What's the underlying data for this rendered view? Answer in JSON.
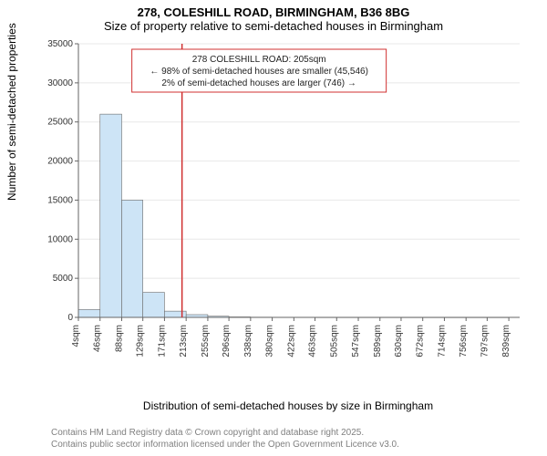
{
  "title_line1": "278, COLESHILL ROAD, BIRMINGHAM, B36 8BG",
  "title_line2": "Size of property relative to semi-detached houses in Birmingham",
  "ylabel": "Number of semi-detached properties",
  "xlabel": "Distribution of semi-detached houses by size in Birmingham",
  "footer_line1": "Contains HM Land Registry data © Crown copyright and database right 2025.",
  "footer_line2": "Contains public sector information licensed under the Open Government Licence v3.0.",
  "chart": {
    "type": "histogram",
    "ylim": [
      0,
      35000
    ],
    "yticks": [
      0,
      5000,
      10000,
      15000,
      20000,
      25000,
      30000,
      35000
    ],
    "xlim": [
      4,
      860
    ],
    "xticks": [
      4,
      46,
      88,
      129,
      171,
      213,
      255,
      296,
      338,
      380,
      422,
      463,
      505,
      547,
      589,
      630,
      672,
      714,
      756,
      797,
      839
    ],
    "xtick_suffix": "sqm",
    "bar_color": "#cde4f6",
    "bar_border": "#6c6c6c",
    "grid_color": "#e8e8e8",
    "axis_color": "#666666",
    "background": "#ffffff",
    "bars": [
      {
        "x0": 4,
        "x1": 46,
        "y": 1000
      },
      {
        "x0": 46,
        "x1": 88,
        "y": 26000
      },
      {
        "x0": 88,
        "x1": 129,
        "y": 15000
      },
      {
        "x0": 129,
        "x1": 171,
        "y": 3200
      },
      {
        "x0": 171,
        "x1": 213,
        "y": 800
      },
      {
        "x0": 213,
        "x1": 255,
        "y": 350
      },
      {
        "x0": 255,
        "x1": 296,
        "y": 150
      },
      {
        "x0": 296,
        "x1": 338,
        "y": 60
      },
      {
        "x0": 338,
        "x1": 380,
        "y": 30
      },
      {
        "x0": 380,
        "x1": 422,
        "y": 15
      },
      {
        "x0": 422,
        "x1": 463,
        "y": 10
      },
      {
        "x0": 463,
        "x1": 505,
        "y": 5
      },
      {
        "x0": 505,
        "x1": 547,
        "y": 5
      },
      {
        "x0": 547,
        "x1": 589,
        "y": 3
      },
      {
        "x0": 589,
        "x1": 630,
        "y": 3
      },
      {
        "x0": 630,
        "x1": 672,
        "y": 2
      },
      {
        "x0": 672,
        "x1": 714,
        "y": 2
      },
      {
        "x0": 714,
        "x1": 756,
        "y": 1
      },
      {
        "x0": 756,
        "x1": 797,
        "y": 1
      },
      {
        "x0": 797,
        "x1": 839,
        "y": 1
      }
    ],
    "marker": {
      "x": 205,
      "line_color": "#d03030",
      "box_border": "#d03030",
      "box_bg": "#ffffff",
      "lines": [
        "278 COLESHILL ROAD: 205sqm",
        "← 98% of semi-detached houses are smaller (45,546)",
        "2% of semi-detached houses are larger (746) →"
      ],
      "font_size": 10
    },
    "tick_fontsize": 10
  }
}
